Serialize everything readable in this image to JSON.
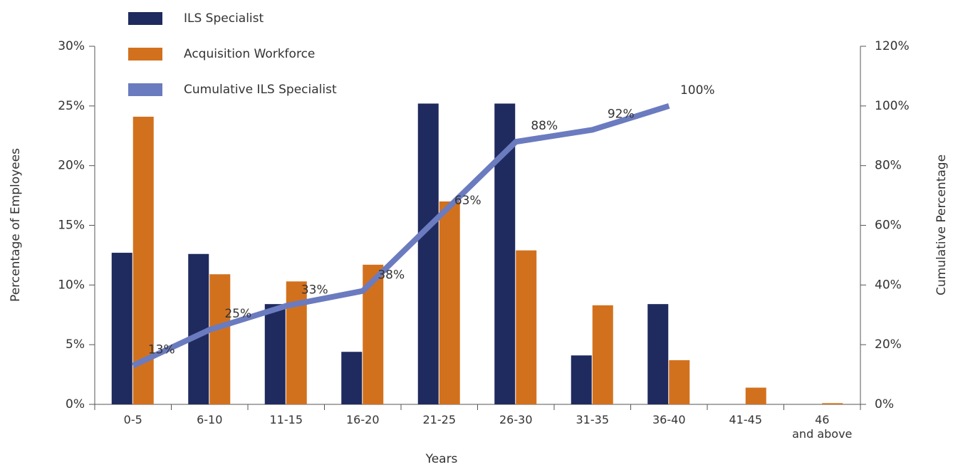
{
  "chart_data": {
    "type": "bar",
    "x_label": "Years",
    "y_label": "Percentage of Employees",
    "y2_label": "Cumulative Percentage",
    "categories": [
      "0-5",
      "6-10",
      "11-15",
      "16-20",
      "21-25",
      "26-30",
      "31-35",
      "36-40",
      "41-45",
      "46\nand above"
    ],
    "series": [
      {
        "name": "ILS Specialist",
        "color": "#1f2a5e",
        "values": [
          12.7,
          12.6,
          8.4,
          4.4,
          25.2,
          25.2,
          4.1,
          8.4,
          0,
          0
        ]
      },
      {
        "name": "Acquisition Workforce",
        "color": "#d2711d",
        "values": [
          24.1,
          10.9,
          10.3,
          11.7,
          17.0,
          12.9,
          8.3,
          3.7,
          1.4,
          0.1
        ]
      },
      {
        "name": "Cumulative ILS Specialist",
        "color": "#6b7bbf",
        "type": "line",
        "axis": "y2",
        "values": [
          13,
          25,
          33,
          38,
          63,
          88,
          92,
          100,
          null,
          null
        ],
        "value_labels": [
          "13%",
          "25%",
          "33%",
          "38%",
          "63%",
          "88%",
          "92%",
          "100%",
          null,
          null
        ]
      }
    ],
    "ylim": [
      0,
      30
    ],
    "yticks": [
      {
        "value": 0,
        "label": "0%"
      },
      {
        "value": 5,
        "label": "5%"
      },
      {
        "value": 10,
        "label": "10%"
      },
      {
        "value": 15,
        "label": "15%"
      },
      {
        "value": 20,
        "label": "20%"
      },
      {
        "value": 25,
        "label": "25%"
      },
      {
        "value": 30,
        "label": "30%"
      }
    ],
    "y2lim": [
      0,
      120
    ],
    "y2ticks": [
      {
        "value": 0,
        "label": "0%"
      },
      {
        "value": 20,
        "label": "20%"
      },
      {
        "value": 40,
        "label": "40%"
      },
      {
        "value": 60,
        "label": "60%"
      },
      {
        "value": 80,
        "label": "80%"
      },
      {
        "value": 100,
        "label": "100%"
      },
      {
        "value": 120,
        "label": "120%"
      }
    ],
    "legend": "top-left",
    "grid": false
  }
}
